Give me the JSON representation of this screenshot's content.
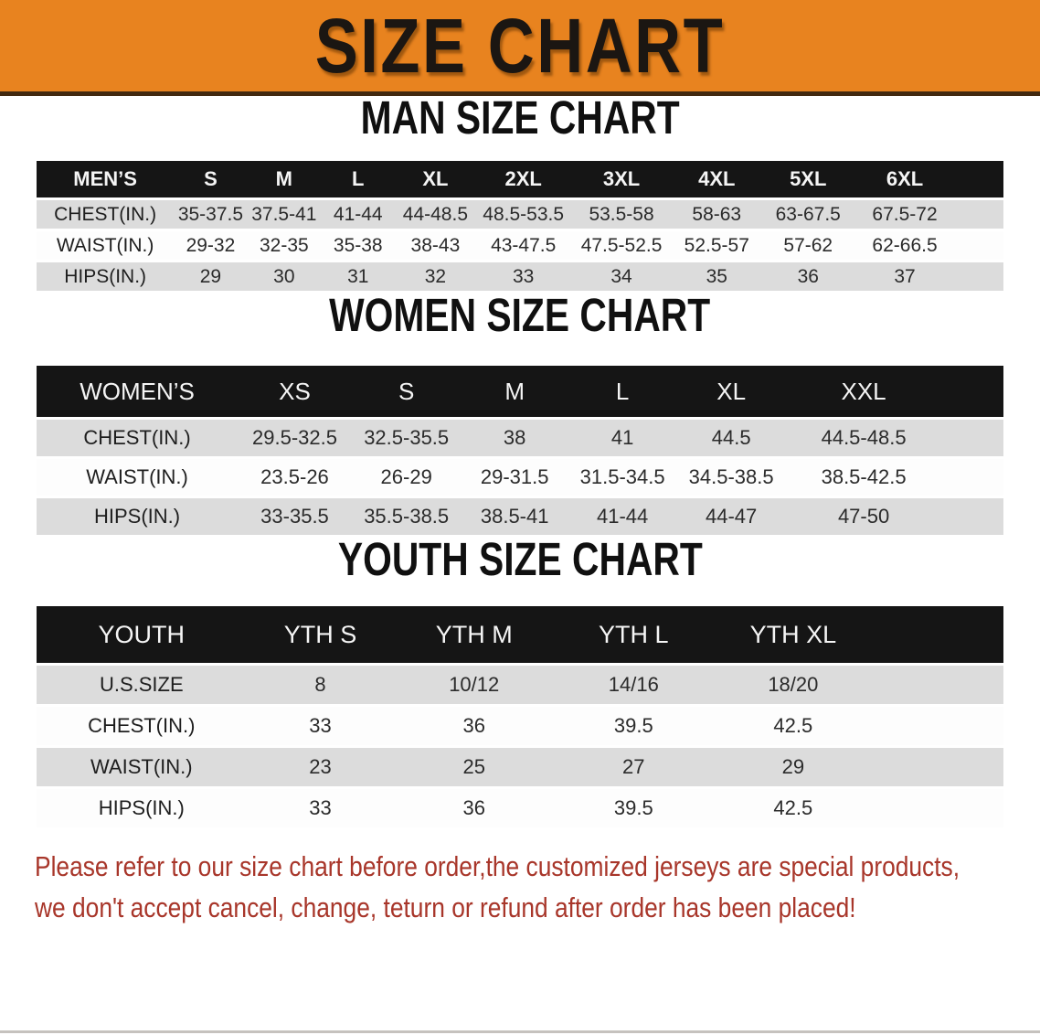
{
  "banner": {
    "title": "SIZE CHART",
    "bg_color": "#e8831f"
  },
  "colors": {
    "banner_orange": "#e8831f",
    "table_header_black": "#151515",
    "row_gray": "#dcdcdc",
    "disclaimer_red": "#a8362a"
  },
  "sections": [
    {
      "id": "men",
      "heading": "MAN SIZE CHART",
      "table": {
        "name": "MEN’S",
        "columns": [
          "S",
          "M",
          "L",
          "XL",
          "2XL",
          "3XL",
          "4XL",
          "5XL",
          "6XL"
        ],
        "rows": [
          {
            "label": "CHEST(IN.)",
            "values": [
              "35-37.5",
              "37.5-41",
              "41-44",
              "44-48.5",
              "48.5-53.5",
              "53.5-58",
              "58-63",
              "63-67.5",
              "67.5-72"
            ]
          },
          {
            "label": "WAIST(IN.)",
            "values": [
              "29-32",
              "32-35",
              "35-38",
              "38-43",
              "43-47.5",
              "47.5-52.5",
              "52.5-57",
              "57-62",
              "62-66.5"
            ]
          },
          {
            "label": "HIPS(IN.)",
            "values": [
              "29",
              "30",
              "31",
              "32",
              "33",
              "34",
              "35",
              "36",
              "37"
            ]
          }
        ]
      }
    },
    {
      "id": "women",
      "heading": "WOMEN SIZE CHART",
      "table": {
        "name": "WOMEN’S",
        "columns": [
          "XS",
          "S",
          "M",
          "L",
          "XL",
          "XXL"
        ],
        "rows": [
          {
            "label": "CHEST(IN.)",
            "values": [
              "29.5-32.5",
              "32.5-35.5",
              "38",
              "41",
              "44.5",
              "44.5-48.5"
            ]
          },
          {
            "label": "WAIST(IN.)",
            "values": [
              "23.5-26",
              "26-29",
              "29-31.5",
              "31.5-34.5",
              "34.5-38.5",
              "38.5-42.5"
            ]
          },
          {
            "label": "HIPS(IN.)",
            "values": [
              "33-35.5",
              "35.5-38.5",
              "38.5-41",
              "41-44",
              "44-47",
              "47-50"
            ]
          }
        ]
      }
    },
    {
      "id": "youth",
      "heading": "YOUTH SIZE CHART",
      "table": {
        "name": "YOUTH",
        "columns": [
          "YTH S",
          "YTH M",
          "YTH L",
          "YTH XL"
        ],
        "rows": [
          {
            "label": "U.S.SIZE",
            "values": [
              "8",
              "10/12",
              "14/16",
              "18/20"
            ]
          },
          {
            "label": "CHEST(IN.)",
            "values": [
              "33",
              "36",
              "39.5",
              "42.5"
            ]
          },
          {
            "label": "WAIST(IN.)",
            "values": [
              "23",
              "25",
              "27",
              "29"
            ]
          },
          {
            "label": "HIPS(IN.)",
            "values": [
              "33",
              "36",
              "39.5",
              "42.5"
            ]
          }
        ]
      }
    }
  ],
  "disclaimer": {
    "line1": "Please refer to our size chart before order,the customized jerseys are special products,",
    "line2": "we don't accept cancel, change, teturn or refund after order has been placed!"
  }
}
